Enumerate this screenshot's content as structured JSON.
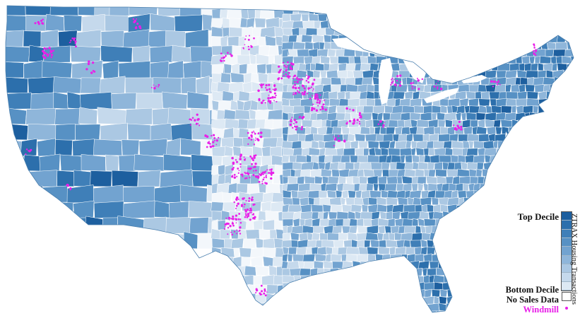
{
  "map": {
    "palette": [
      "#f3f7fb",
      "#dde9f4",
      "#c5d9ec",
      "#abc8e3",
      "#8fb6da",
      "#72a3d0",
      "#5791c4",
      "#3f7fb8",
      "#2c6fac",
      "#1d5f9f"
    ],
    "boundary_color": "#ffffff",
    "windmill_color": "#e820e8"
  },
  "legend": {
    "top_label": "Top Decile",
    "bottom_label": "Bottom Decile",
    "no_data_label": "No Sales Data",
    "windmill_label": "Windmill",
    "ramp_title": "ZTRAX Housing Transactions",
    "ramp_colors": [
      "#1d5f9f",
      "#2c6fac",
      "#3f7fb8",
      "#5791c4",
      "#72a3d0",
      "#8fb6da",
      "#abc8e3",
      "#c5d9ec",
      "#dde9f4"
    ],
    "windmill_color": "#e820e8"
  }
}
